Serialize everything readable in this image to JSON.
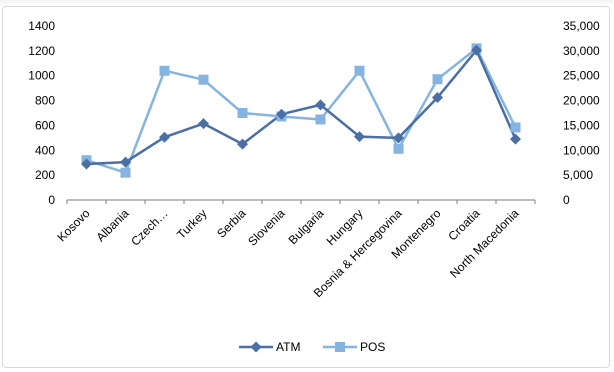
{
  "chart_data": {
    "type": "line",
    "categories": [
      "Kosovo",
      "Albania",
      "Czech…",
      "Turkey",
      "Serbia",
      "Slovenia",
      "Bulgaria",
      "Hungary",
      "Bosnia & Hercegovina",
      "Montenegro",
      "Croatia",
      "North Macedonia"
    ],
    "series": [
      {
        "name": "ATM",
        "axis": "left",
        "marker": "diamond",
        "color": "#4a6fa5",
        "values": [
          290,
          305,
          505,
          615,
          450,
          690,
          765,
          510,
          500,
          825,
          1205,
          490
        ]
      },
      {
        "name": "POS",
        "axis": "right",
        "marker": "square",
        "color": "#86b4e0",
        "values": [
          8000,
          5500,
          26000,
          24200,
          17500,
          16800,
          16200,
          26000,
          10300,
          24300,
          30500,
          14600
        ]
      }
    ],
    "y_left": {
      "range": [
        0,
        1400
      ],
      "ticks": [
        "0",
        "200",
        "400",
        "600",
        "800",
        "1000",
        "1200",
        "1400"
      ]
    },
    "y_right": {
      "range": [
        0,
        35000
      ],
      "ticks": [
        "0",
        "5,000",
        "10,000",
        "15,000",
        "20,000",
        "25,000",
        "30,000",
        "35,000"
      ]
    },
    "grid": false,
    "legend": "bottom"
  }
}
